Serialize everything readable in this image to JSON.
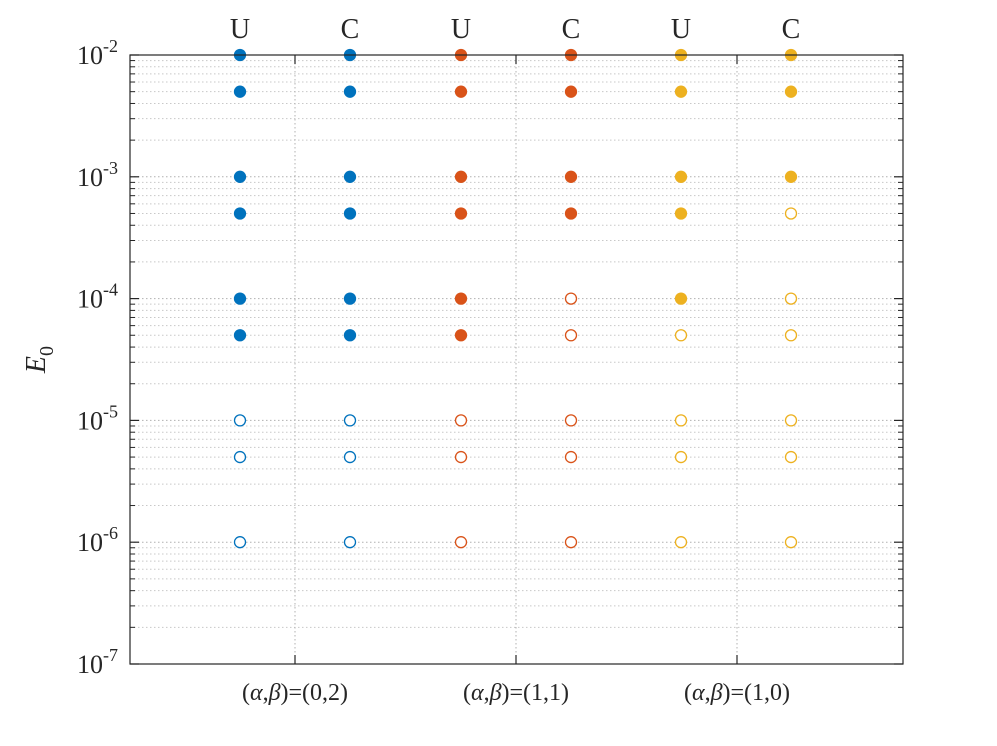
{
  "chart_data": {
    "type": "scatter",
    "title": "",
    "xlabel": "",
    "ylabel": "E",
    "ylabel_subscript": "0",
    "yscale": "log",
    "ylim": [
      1e-07,
      0.01
    ],
    "y_tick_labels": [
      {
        "base": "10",
        "exp": "-7"
      },
      {
        "base": "10",
        "exp": "-6"
      },
      {
        "base": "10",
        "exp": "-5"
      },
      {
        "base": "10",
        "exp": "-4"
      },
      {
        "base": "10",
        "exp": "-3"
      },
      {
        "base": "10",
        "exp": "-2"
      }
    ],
    "y_values": [
      0.01,
      0.005,
      0.001,
      0.0005,
      0.0001,
      5e-05,
      1e-05,
      5e-06,
      1e-06
    ],
    "categories": [
      {
        "pre": "(",
        "a": "α",
        "comma": ",",
        "b": "β",
        "post": ")=(0,2)"
      },
      {
        "pre": "(",
        "a": "α",
        "comma": ",",
        "b": "β",
        "post": ")=(1,1)"
      },
      {
        "pre": "(",
        "a": "α",
        "comma": ",",
        "b": "β",
        "post": ")=(1,0)"
      }
    ],
    "columns": [
      {
        "label": "U",
        "color": "#0072BD",
        "filled": [
          true,
          true,
          true,
          true,
          true,
          true,
          false,
          false,
          false
        ]
      },
      {
        "label": "C",
        "color": "#0072BD",
        "filled": [
          true,
          true,
          true,
          true,
          true,
          true,
          false,
          false,
          false
        ]
      },
      {
        "label": "U",
        "color": "#D95319",
        "filled": [
          true,
          true,
          true,
          true,
          true,
          true,
          false,
          false,
          false
        ]
      },
      {
        "label": "C",
        "color": "#D95319",
        "filled": [
          true,
          true,
          true,
          true,
          false,
          false,
          false,
          false,
          false
        ]
      },
      {
        "label": "U",
        "color": "#EDB120",
        "filled": [
          true,
          true,
          true,
          true,
          true,
          false,
          false,
          false,
          false
        ]
      },
      {
        "label": "C",
        "color": "#EDB120",
        "filled": [
          true,
          true,
          true,
          false,
          false,
          false,
          false,
          false,
          false
        ]
      }
    ],
    "legend": "none",
    "grid": true
  }
}
